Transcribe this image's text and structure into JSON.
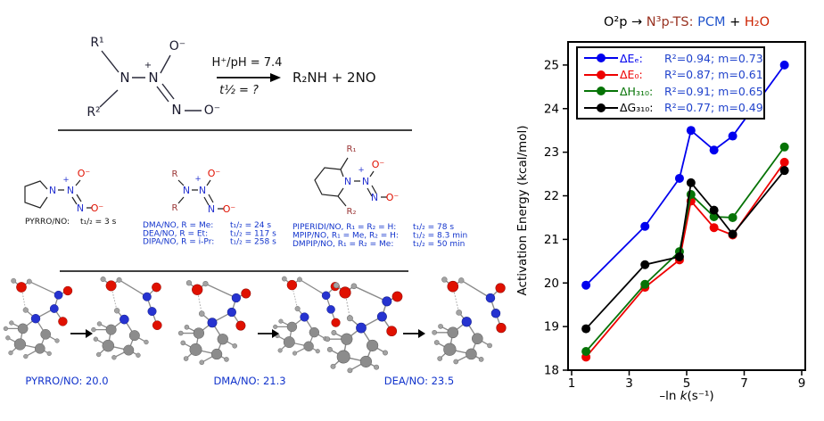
{
  "colors": {
    "atom_nitrogen": "#2633d0",
    "atom_oxygen": "#e01000",
    "r_group_maroon": "#993333",
    "label_blue": "#1133cc",
    "legend_stats_blue": "#2244cc"
  },
  "scheme": {
    "r1": "R¹",
    "r2": "R²",
    "n_amine": "N",
    "n_center": "N",
    "plus": "+",
    "o_top": "O⁻",
    "n_lower": "N",
    "o_right": "O⁻",
    "condition_top": "H⁺/pH = 7.4",
    "condition_bottom": "t½ = ?",
    "product": "R₂NH + 2NO"
  },
  "structures": {
    "atoms": {
      "N": "N",
      "O": "O⁻",
      "plus": "+",
      "R": "R",
      "R1": "R₁",
      "R2": "R₂"
    },
    "group1_label": {
      "name": "PYRRO/NO:",
      "value": "t₁/₂ = 3 s"
    },
    "group2_labels": [
      {
        "name": "DMA/NO, R = Me:",
        "value": "t₁/₂ = 24 s"
      },
      {
        "name": "DEA/NO, R = Et:",
        "value": "t₁/₂ = 117 s"
      },
      {
        "name": "DIPA/NO, R = i-Pr:",
        "value": "t₁/₂ = 258 s"
      }
    ],
    "group3_labels": [
      {
        "name": "PIPERIDI/NO, R₁ = R₂ = H:",
        "value": "t₁/₂ = 78 s"
      },
      {
        "name": "MPIP/NO, R₁ = Me, R₂ = H:",
        "value": "t₁/₂ = 8.3 min"
      },
      {
        "name": "DMPIP/NO, R₁ = R₂ = Me:",
        "value": "t₁/₂ = 50 min"
      }
    ]
  },
  "models": {
    "labels": [
      "PYRRO/NO: 20.0",
      "DMA/NO: 21.3",
      "DEA/NO: 23.5"
    ]
  },
  "chart_data": {
    "type": "line",
    "title_parts": [
      {
        "text": "O²p → ",
        "color": "#000000"
      },
      {
        "text": "N³p-TS: ",
        "color": "#993322"
      },
      {
        "text": "PCM",
        "color": "#2255cc"
      },
      {
        "text": " + ",
        "color": "#000000"
      },
      {
        "text": "H₂O",
        "color": "#cc2200"
      }
    ],
    "xlabel_parts": [
      "–ln ",
      "k",
      "(s⁻¹)"
    ],
    "ylabel": "Activation Energy  (kcal/mol)",
    "xlim": [
      1,
      9
    ],
    "ylim": [
      18,
      25.53
    ],
    "xticks": [
      1,
      3,
      5,
      7,
      9
    ],
    "yticks": [
      18,
      19,
      20,
      21,
      22,
      23,
      24,
      25
    ],
    "grid": false,
    "legend_position": "upper-left",
    "x": [
      1.5,
      3.55,
      4.75,
      5.15,
      5.95,
      6.6,
      8.4
    ],
    "series": [
      {
        "name": "ΔEₑ:",
        "stats": "R²=0.94; m=0.73",
        "color": "#0000ee",
        "values": [
          19.95,
          21.3,
          22.4,
          23.5,
          23.05,
          23.37,
          25.0
        ]
      },
      {
        "name": "ΔE₀:",
        "stats": "R²=0.87; m=0.61",
        "color": "#ee0000",
        "values": [
          18.3,
          19.9,
          20.53,
          21.88,
          21.27,
          21.1,
          22.77
        ]
      },
      {
        "name": "ΔH₃₁₀:",
        "stats": "R²=0.91; m=0.65",
        "color": "#067306",
        "values": [
          18.43,
          19.97,
          20.72,
          22.03,
          21.52,
          21.5,
          23.12
        ]
      },
      {
        "name": "ΔG₃₁₀:",
        "stats": "R²=0.77; m=0.49",
        "color": "#000000",
        "values": [
          18.95,
          20.42,
          20.6,
          22.3,
          21.67,
          21.12,
          22.58
        ]
      }
    ]
  }
}
